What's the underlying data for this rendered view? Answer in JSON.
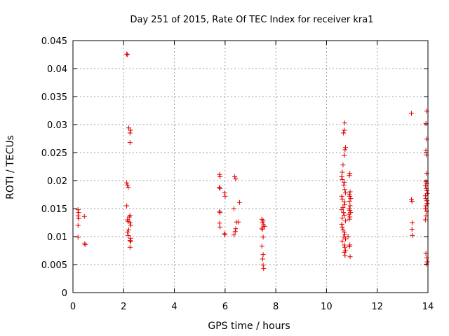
{
  "chart_data": {
    "type": "scatter",
    "title": "Day 251 of 2015, Rate Of TEC Index for receiver kra1",
    "xlabel": "GPS time / hours",
    "ylabel": "ROTI / TECUs",
    "xlim": [
      0,
      14
    ],
    "ylim": [
      0,
      0.045
    ],
    "xticks": [
      "0",
      "2",
      "4",
      "6",
      "8",
      "10",
      "12",
      "14"
    ],
    "yticks": [
      "0",
      "0.005",
      "0.01",
      "0.015",
      "0.02",
      "0.025",
      "0.03",
      "0.035",
      "0.04",
      "0.045"
    ],
    "grid": true,
    "marker": "+",
    "color": "#e00000",
    "series": [
      {
        "points": [
          [
            0.2,
            0.0148
          ],
          [
            0.22,
            0.0143
          ],
          [
            0.2,
            0.0137
          ],
          [
            0.22,
            0.0132
          ],
          [
            0.2,
            0.012
          ],
          [
            0.2,
            0.0099
          ],
          [
            0.45,
            0.0136
          ],
          [
            0.45,
            0.0087
          ],
          [
            0.5,
            0.0086
          ],
          [
            2.12,
            0.0426
          ],
          [
            2.15,
            0.0425
          ],
          [
            2.2,
            0.0294
          ],
          [
            2.27,
            0.029
          ],
          [
            2.25,
            0.0285
          ],
          [
            2.25,
            0.0268
          ],
          [
            2.12,
            0.0196
          ],
          [
            2.15,
            0.0192
          ],
          [
            2.18,
            0.0188
          ],
          [
            2.12,
            0.0155
          ],
          [
            2.25,
            0.0138
          ],
          [
            2.22,
            0.0135
          ],
          [
            2.15,
            0.013
          ],
          [
            2.18,
            0.0127
          ],
          [
            2.25,
            0.0125
          ],
          [
            2.28,
            0.012
          ],
          [
            2.2,
            0.0112
          ],
          [
            2.15,
            0.0108
          ],
          [
            2.18,
            0.0102
          ],
          [
            2.27,
            0.0097
          ],
          [
            2.25,
            0.0093
          ],
          [
            2.28,
            0.0091
          ],
          [
            2.25,
            0.0081
          ],
          [
            5.78,
            0.0211
          ],
          [
            5.8,
            0.0207
          ],
          [
            5.77,
            0.0188
          ],
          [
            5.8,
            0.0186
          ],
          [
            5.98,
            0.0178
          ],
          [
            6.0,
            0.0172
          ],
          [
            5.78,
            0.0145
          ],
          [
            5.8,
            0.0143
          ],
          [
            5.78,
            0.0124
          ],
          [
            5.8,
            0.0117
          ],
          [
            5.97,
            0.0105
          ],
          [
            6.0,
            0.0104
          ],
          [
            6.38,
            0.0207
          ],
          [
            6.42,
            0.0203
          ],
          [
            6.57,
            0.0161
          ],
          [
            6.35,
            0.015
          ],
          [
            6.45,
            0.0126
          ],
          [
            6.52,
            0.0126
          ],
          [
            6.42,
            0.0114
          ],
          [
            6.4,
            0.0109
          ],
          [
            6.35,
            0.0103
          ],
          [
            7.45,
            0.0131
          ],
          [
            7.5,
            0.0128
          ],
          [
            7.48,
            0.0125
          ],
          [
            7.52,
            0.0121
          ],
          [
            7.55,
            0.0118
          ],
          [
            7.45,
            0.0115
          ],
          [
            7.47,
            0.0113
          ],
          [
            7.5,
            0.0099
          ],
          [
            7.45,
            0.0083
          ],
          [
            7.5,
            0.0068
          ],
          [
            7.48,
            0.006
          ],
          [
            7.5,
            0.0049
          ],
          [
            7.52,
            0.0043
          ],
          [
            10.72,
            0.0303
          ],
          [
            10.7,
            0.029
          ],
          [
            10.67,
            0.0285
          ],
          [
            10.75,
            0.0259
          ],
          [
            10.73,
            0.0255
          ],
          [
            10.7,
            0.0245
          ],
          [
            10.65,
            0.0228
          ],
          [
            10.62,
            0.0215
          ],
          [
            10.6,
            0.0207
          ],
          [
            10.62,
            0.0202
          ],
          [
            10.7,
            0.0197
          ],
          [
            10.68,
            0.0192
          ],
          [
            10.72,
            0.0184
          ],
          [
            10.75,
            0.0178
          ],
          [
            10.6,
            0.0172
          ],
          [
            10.62,
            0.0167
          ],
          [
            10.7,
            0.0162
          ],
          [
            10.72,
            0.0157
          ],
          [
            10.65,
            0.0152
          ],
          [
            10.6,
            0.0148
          ],
          [
            10.67,
            0.0143
          ],
          [
            10.7,
            0.0138
          ],
          [
            10.62,
            0.0133
          ],
          [
            10.75,
            0.0128
          ],
          [
            10.6,
            0.0122
          ],
          [
            10.62,
            0.0117
          ],
          [
            10.65,
            0.0112
          ],
          [
            10.7,
            0.0108
          ],
          [
            10.72,
            0.0104
          ],
          [
            10.68,
            0.0099
          ],
          [
            10.75,
            0.0096
          ],
          [
            10.62,
            0.0092
          ],
          [
            10.7,
            0.0085
          ],
          [
            10.72,
            0.0081
          ],
          [
            10.75,
            0.0075
          ],
          [
            10.7,
            0.0072
          ],
          [
            10.73,
            0.0066
          ],
          [
            10.92,
            0.0213
          ],
          [
            10.9,
            0.0209
          ],
          [
            10.93,
            0.018
          ],
          [
            10.9,
            0.0175
          ],
          [
            10.92,
            0.0172
          ],
          [
            10.95,
            0.0168
          ],
          [
            10.9,
            0.0163
          ],
          [
            10.93,
            0.0155
          ],
          [
            10.9,
            0.015
          ],
          [
            10.92,
            0.0147
          ],
          [
            10.95,
            0.0143
          ],
          [
            10.88,
            0.014
          ],
          [
            10.92,
            0.0135
          ],
          [
            10.9,
            0.0131
          ],
          [
            10.85,
            0.01
          ],
          [
            10.92,
            0.0085
          ],
          [
            10.9,
            0.0082
          ],
          [
            10.93,
            0.0064
          ],
          [
            13.35,
            0.032
          ],
          [
            13.35,
            0.0166
          ],
          [
            13.37,
            0.0163
          ],
          [
            13.38,
            0.0125
          ],
          [
            13.37,
            0.0113
          ],
          [
            13.38,
            0.0102
          ],
          [
            13.95,
            0.0324
          ],
          [
            13.92,
            0.0302
          ],
          [
            13.95,
            0.0274
          ],
          [
            13.92,
            0.0254
          ],
          [
            13.93,
            0.0246
          ],
          [
            13.95,
            0.0213
          ],
          [
            13.92,
            0.0198
          ],
          [
            13.95,
            0.0195
          ],
          [
            13.9,
            0.0191
          ],
          [
            13.93,
            0.0186
          ],
          [
            13.95,
            0.0182
          ],
          [
            13.97,
            0.0177
          ],
          [
            13.9,
            0.0173
          ],
          [
            13.92,
            0.0168
          ],
          [
            13.95,
            0.0164
          ],
          [
            13.97,
            0.0159
          ],
          [
            13.92,
            0.0155
          ],
          [
            13.9,
            0.015
          ],
          [
            13.95,
            0.0145
          ],
          [
            13.92,
            0.0137
          ],
          [
            13.9,
            0.013
          ],
          [
            13.92,
            0.007
          ],
          [
            13.95,
            0.0062
          ],
          [
            13.97,
            0.0055
          ],
          [
            13.95,
            0.0051
          ]
        ]
      }
    ]
  }
}
